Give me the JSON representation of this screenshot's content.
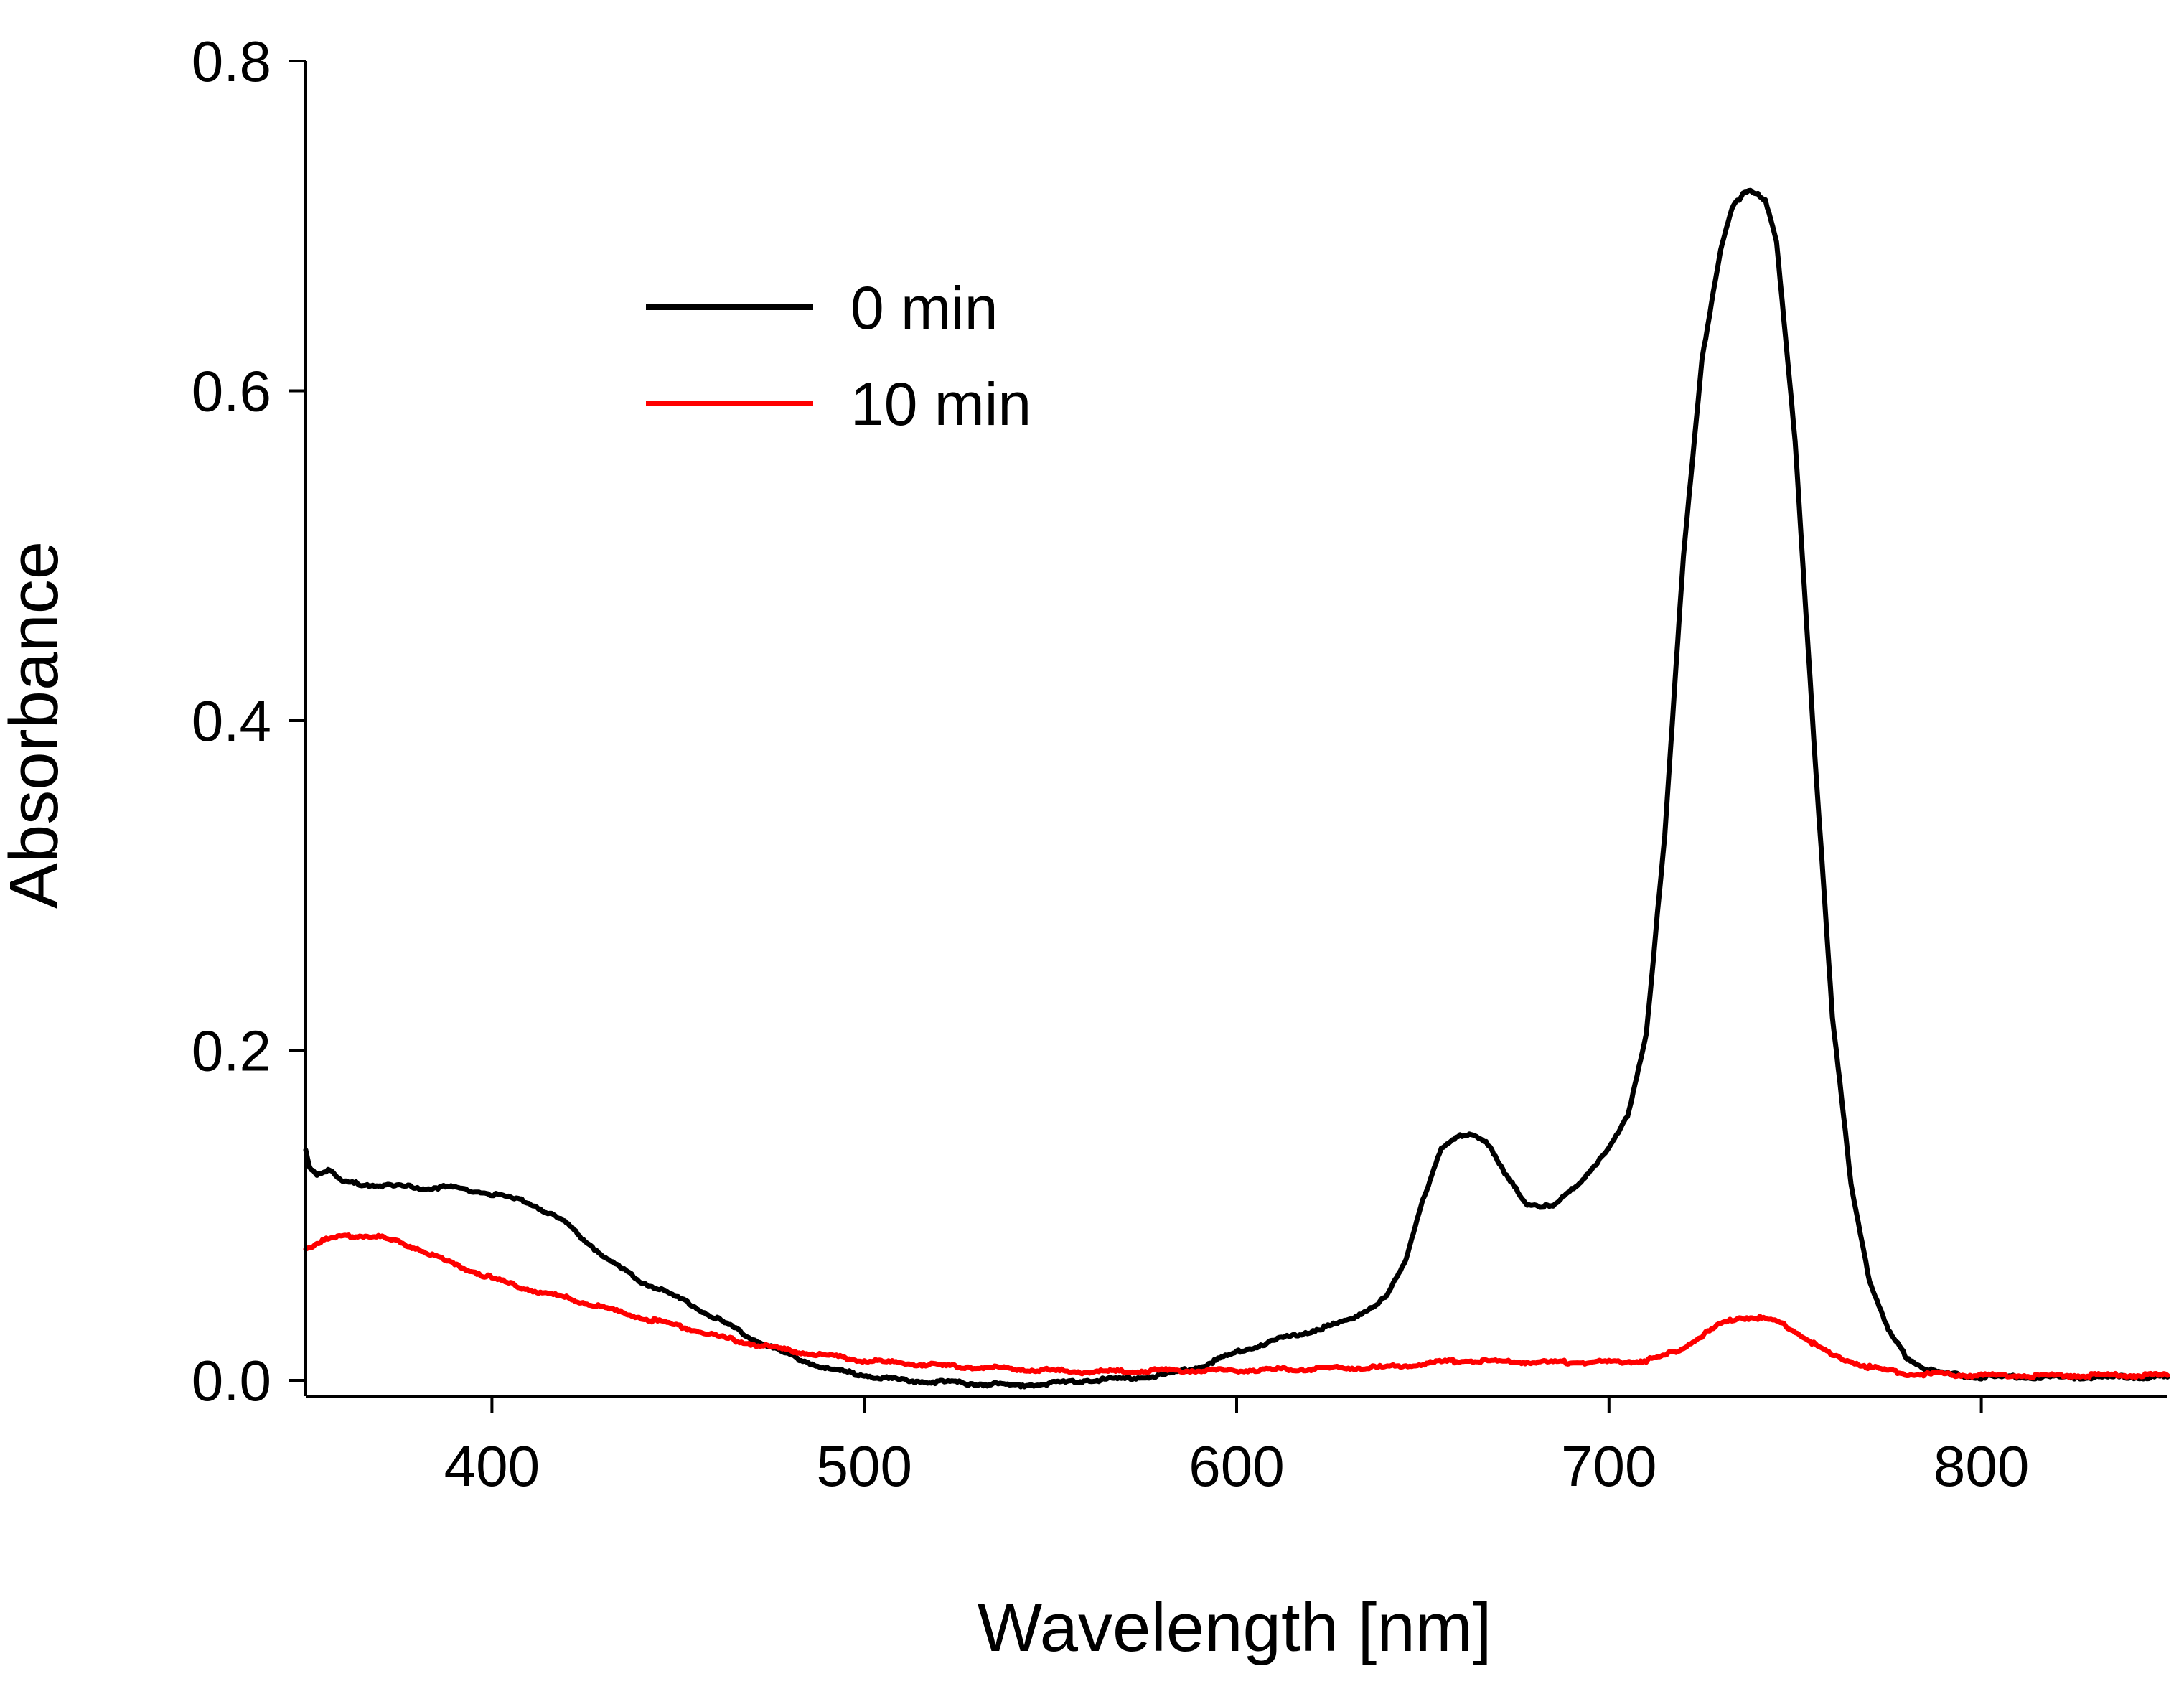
{
  "chart_data": {
    "type": "line",
    "title": "",
    "xlabel": "Wavelength [nm]",
    "ylabel": "Absorbance",
    "xlim": [
      350,
      850
    ],
    "ylim": [
      -0.01,
      0.8
    ],
    "grid": false,
    "legend_position": "upper-left-center",
    "x_ticks": [
      400,
      500,
      600,
      700,
      800
    ],
    "x_tick_labels": [
      "400",
      "500",
      "600",
      "700",
      "800"
    ],
    "y_ticks": [
      0.0,
      0.2,
      0.4,
      0.6,
      0.8
    ],
    "y_tick_labels": [
      "0.0",
      "0.2",
      "0.4",
      "0.6",
      "0.8"
    ],
    "series": [
      {
        "name": "0 min",
        "color": "#000000",
        "x": [
          350,
          351,
          353,
          356,
          360,
          370,
          380,
          390,
          400,
          410,
          420,
          430,
          440,
          450,
          460,
          470,
          480,
          490,
          500,
          510,
          520,
          530,
          540,
          550,
          560,
          570,
          580,
          590,
          600,
          610,
          620,
          630,
          640,
          645,
          650,
          655,
          660,
          663,
          667,
          672,
          678,
          685,
          692,
          700,
          705,
          710,
          715,
          720,
          725,
          730,
          733,
          736,
          738,
          740,
          742,
          745,
          750,
          755,
          760,
          765,
          770,
          775,
          780,
          785,
          790,
          795,
          800,
          810,
          820,
          830,
          850
        ],
        "y": [
          0.14,
          0.13,
          0.125,
          0.128,
          0.12,
          0.118,
          0.117,
          0.117,
          0.113,
          0.108,
          0.095,
          0.075,
          0.06,
          0.05,
          0.038,
          0.025,
          0.015,
          0.007,
          0.003,
          0.0,
          -0.001,
          -0.002,
          -0.003,
          -0.002,
          0.0,
          0.001,
          0.003,
          0.008,
          0.017,
          0.024,
          0.03,
          0.036,
          0.05,
          0.07,
          0.11,
          0.14,
          0.148,
          0.15,
          0.145,
          0.125,
          0.107,
          0.105,
          0.12,
          0.14,
          0.16,
          0.21,
          0.33,
          0.5,
          0.62,
          0.685,
          0.71,
          0.72,
          0.722,
          0.72,
          0.715,
          0.69,
          0.57,
          0.39,
          0.22,
          0.12,
          0.06,
          0.03,
          0.014,
          0.007,
          0.004,
          0.003,
          0.002,
          0.002,
          0.002,
          0.002,
          0.002
        ]
      },
      {
        "name": "10 min",
        "color": "#ff0000",
        "x": [
          350,
          355,
          360,
          365,
          370,
          380,
          390,
          400,
          410,
          420,
          430,
          440,
          450,
          460,
          470,
          480,
          490,
          500,
          520,
          540,
          560,
          580,
          600,
          620,
          640,
          660,
          680,
          700,
          710,
          715,
          720,
          725,
          730,
          735,
          740,
          745,
          750,
          755,
          760,
          770,
          780,
          800,
          850
        ],
        "y": [
          0.08,
          0.085,
          0.087,
          0.088,
          0.087,
          0.08,
          0.07,
          0.062,
          0.055,
          0.05,
          0.044,
          0.038,
          0.033,
          0.027,
          0.022,
          0.018,
          0.015,
          0.012,
          0.009,
          0.007,
          0.005,
          0.006,
          0.006,
          0.007,
          0.008,
          0.012,
          0.011,
          0.011,
          0.012,
          0.015,
          0.02,
          0.027,
          0.034,
          0.038,
          0.038,
          0.036,
          0.03,
          0.022,
          0.015,
          0.008,
          0.004,
          0.003,
          0.003
        ]
      }
    ]
  }
}
